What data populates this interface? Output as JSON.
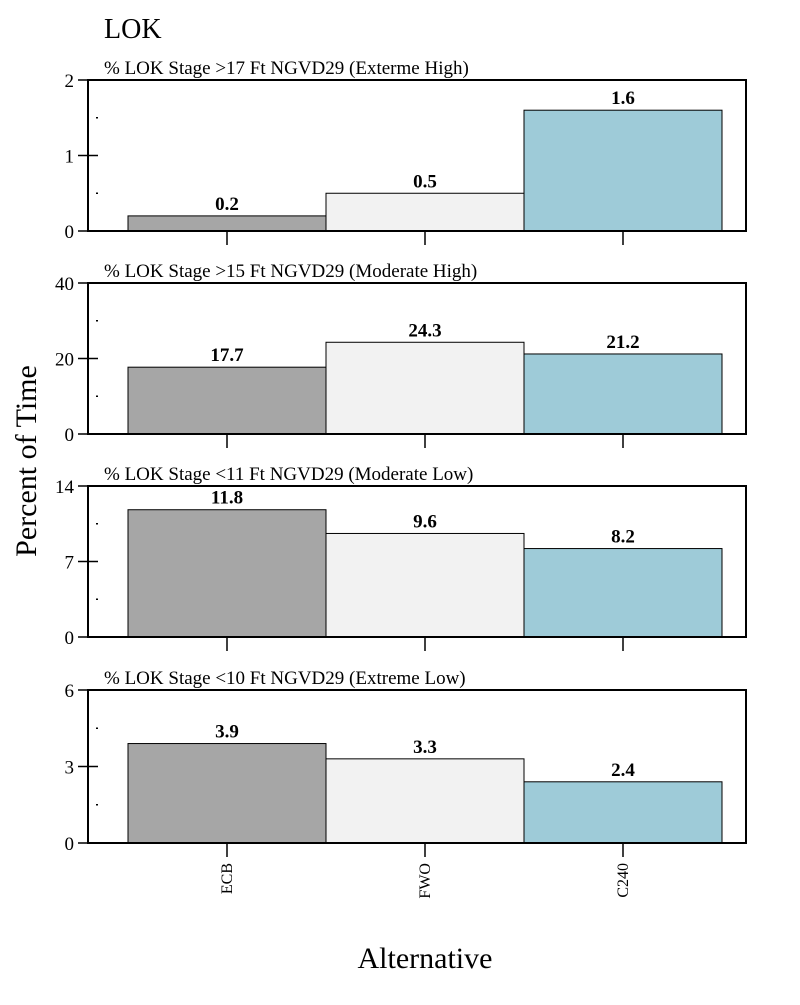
{
  "header": {
    "title": "LOK"
  },
  "colors": {
    "ECB": "#a6a6a6",
    "FWO": "#f2f2f2",
    "C240": "#9ecbd8"
  },
  "chart_data": {
    "type": "bar",
    "title": "LOK",
    "xlabel": "Alternative",
    "ylabel": "Percent of Time",
    "categories": [
      "ECB",
      "FWO",
      "C240"
    ],
    "grid": false,
    "legend": "none",
    "panels": [
      {
        "subtitle": "% LOK Stage >17 Ft NGVD29 (Exterme High)",
        "values": [
          0.2,
          0.5,
          1.6
        ],
        "ylim": [
          0,
          2
        ],
        "yticks": [
          0,
          1,
          2
        ],
        "minor_step": 0.5
      },
      {
        "subtitle": "% LOK Stage >15 Ft NGVD29 (Moderate High)",
        "values": [
          17.7,
          24.3,
          21.2
        ],
        "ylim": [
          0,
          40
        ],
        "yticks": [
          0,
          20,
          40
        ],
        "minor_step": 10
      },
      {
        "subtitle": "% LOK Stage <11 Ft NGVD29 (Moderate Low)",
        "values": [
          11.8,
          9.6,
          8.2
        ],
        "ylim": [
          0,
          14
        ],
        "yticks": [
          0,
          7,
          14
        ],
        "minor_step": 3.5
      },
      {
        "subtitle": "% LOK Stage <10 Ft NGVD29 (Extreme Low)",
        "values": [
          3.9,
          3.3,
          2.4
        ],
        "ylim": [
          0,
          6
        ],
        "yticks": [
          0,
          3,
          6
        ],
        "minor_step": 1.5
      }
    ]
  }
}
